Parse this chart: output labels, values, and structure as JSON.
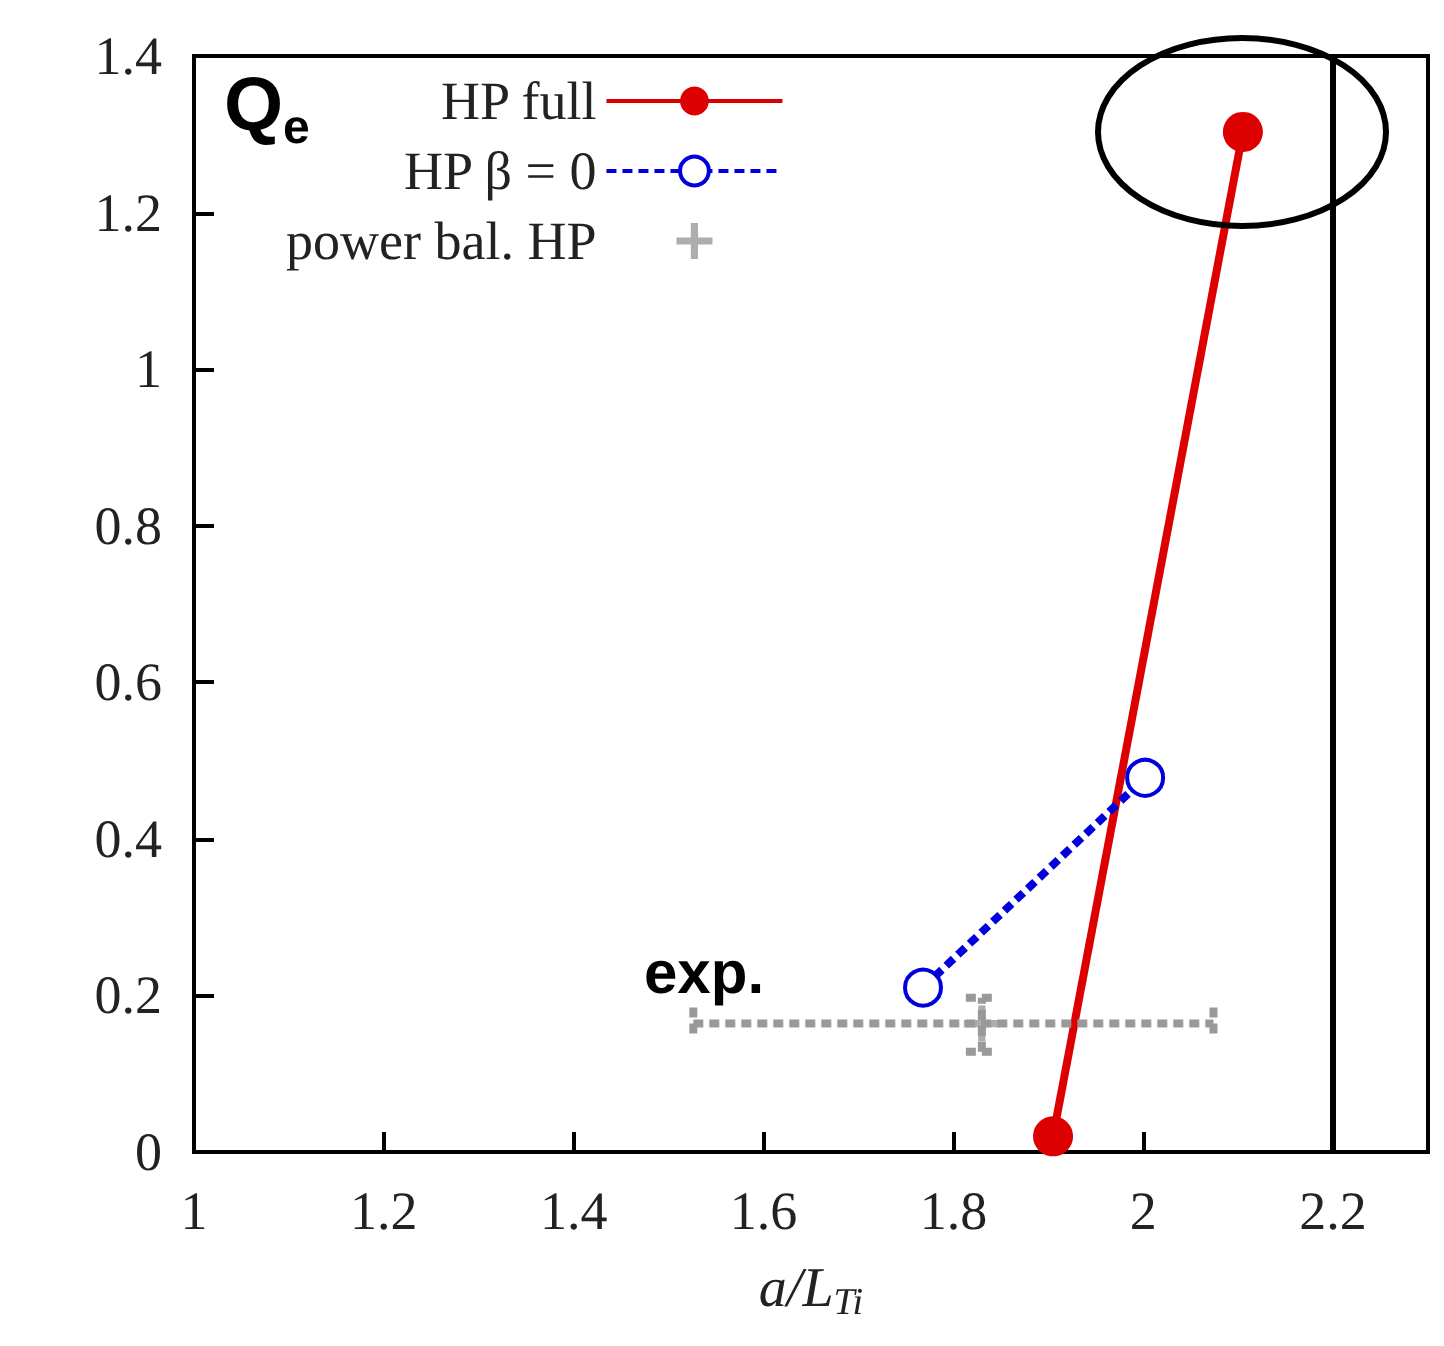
{
  "chart_data": {
    "type": "line",
    "xlabel": "a/L$_{Ti}$",
    "annotations": [
      "Q$_{e}$",
      "exp."
    ],
    "series": [
      {
        "name": "HP full",
        "color": "#dd0000",
        "x": [
          1.905,
          2.105
        ],
        "values": [
          0.02,
          1.303
        ],
        "marker": "circle",
        "line_style": "solid"
      },
      {
        "name": "HP β = 0",
        "color": "#0000dd",
        "x": [
          1.768,
          2.002
        ],
        "values": [
          0.21,
          0.478
        ],
        "marker": "open_circle",
        "line_style": "dashed"
      },
      {
        "name": "power bal. HP",
        "color": "#999999",
        "type": "scatter",
        "x": [
          1.83
        ],
        "values": [
          0.164
        ],
        "marker": "cross",
        "line_style": "dashed",
        "errors": [
          [
            0.128,
            0.197
          ]
        ],
        "xerrors": [
          [
            1.526,
            2.074
          ]
        ]
      }
    ],
    "xlim": [
      1,
      2.3
    ],
    "xticks": [
      1,
      1.2,
      1.4,
      1.6,
      1.8,
      2,
      2.2
    ],
    "ylim": [
      0,
      1.4
    ],
    "yticks": [
      0,
      {
        "value": 0.2,
        "label": "0.2"
      },
      {
        "value": 0.4,
        "label": "0.4"
      },
      {
        "value": 0.6,
        "label": "0.6"
      },
      {
        "value": 0.8,
        "label": "0.8"
      },
      1,
      {
        "value": 1.2,
        "label": "1.2"
      },
      {
        "value": 1.4,
        "label": "1.4"
      }
    ],
    "ref_lines": [
      {
        "axis": "x",
        "value": 2.2,
        "color": "#000000",
        "line_style": "solid"
      }
    ],
    "grid": false,
    "legend": "top"
  }
}
